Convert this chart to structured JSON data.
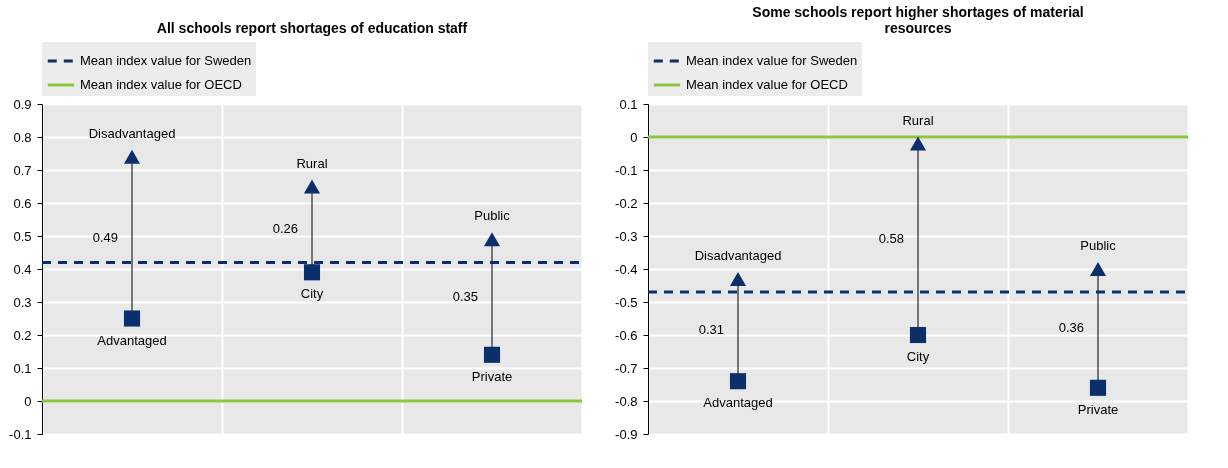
{
  "chart_data": [
    {
      "type": "scatter",
      "title": "All schools report shortages of education staff",
      "categories": [
        null,
        null,
        null
      ],
      "series": [
        {
          "color": "#0b2f6b",
          "marker": "triangle",
          "values": [
            0.74,
            0.65,
            0.49
          ],
          "value_labels": [
            "Disadvantaged",
            "Rural",
            "Public"
          ]
        },
        {
          "color": "#0b2f6b",
          "marker": "square",
          "values": [
            0.25,
            0.39,
            0.14
          ],
          "value_labels": [
            "Advantaged",
            "City",
            "Private"
          ]
        }
      ],
      "ylim": [
        -0.1,
        0.9
      ],
      "yticks": [
        -0.1,
        0,
        0.1,
        0.2,
        0.3,
        0.4,
        0.5,
        0.6,
        0.7,
        0.8,
        0.9
      ],
      "ref_lines": [
        {
          "axis": "y",
          "value": 0.42,
          "label": "Mean index value for Sweden",
          "color": "#0b2f6b",
          "line_style": "dashed"
        },
        {
          "axis": "y",
          "value": 0,
          "label": "Mean index value for OECD",
          "color": "#8cc641",
          "line_style": "solid"
        }
      ],
      "annotations": [
        "0.49",
        "0.26",
        "0.35"
      ],
      "grid": true,
      "legend": "top",
      "tick_labels": "y"
    },
    {
      "type": "scatter",
      "title": "Some schools report higher shortages of material resources",
      "categories": [
        null,
        null,
        null
      ],
      "series": [
        {
          "color": "#0b2f6b",
          "marker": "triangle",
          "values": [
            -0.43,
            -0.02,
            -0.4
          ],
          "value_labels": [
            "Disadvantaged",
            "Rural",
            "Public"
          ]
        },
        {
          "color": "#0b2f6b",
          "marker": "square",
          "values": [
            -0.74,
            -0.6,
            -0.76
          ],
          "value_labels": [
            "Advantaged",
            "City",
            "Private"
          ]
        }
      ],
      "ylim": [
        -0.9,
        0.1
      ],
      "yticks": [
        -0.9,
        -0.8,
        -0.7,
        -0.6,
        -0.5,
        -0.4,
        -0.3,
        -0.2,
        -0.1,
        0,
        0.1
      ],
      "ref_lines": [
        {
          "axis": "y",
          "value": -0.47,
          "label": "Mean index value for Sweden",
          "color": "#0b2f6b",
          "line_style": "dashed"
        },
        {
          "axis": "y",
          "value": 0,
          "label": "Mean index value for OECD",
          "color": "#8cc641",
          "line_style": "solid"
        }
      ],
      "annotations": [
        "0.31",
        "0.58",
        "0.36"
      ],
      "grid": true,
      "legend": "top",
      "tick_labels": "y"
    }
  ]
}
